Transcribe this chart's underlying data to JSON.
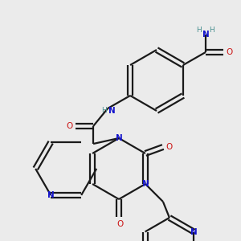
{
  "bg": "#ebebeb",
  "C": "#1a1a1a",
  "N": "#1414cc",
  "O": "#cc1414",
  "H": "#4a9090",
  "lw": 1.6,
  "fs": 7.5,
  "figsize": [
    3.0,
    3.0
  ],
  "dpi": 100
}
